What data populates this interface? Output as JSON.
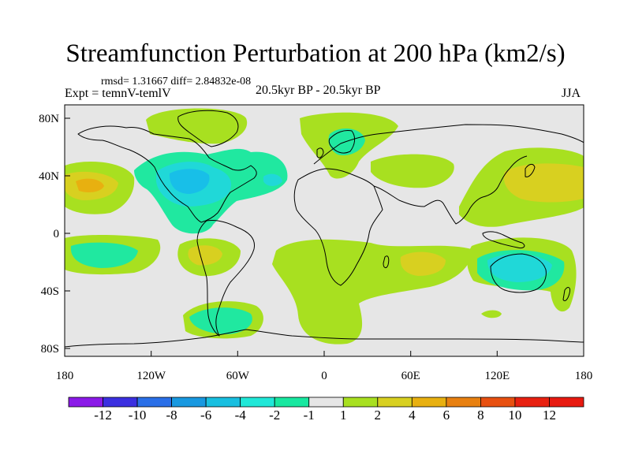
{
  "title": "Streamfunction Perturbation at 200 hPa (km2/s)",
  "stats": "rmsd= 1.31667 diff= 2.84832e-08",
  "expt": "Expt = temnV-temlV",
  "period": "20.5kyr BP - 20.5kyr BP",
  "season": "JJA",
  "x_ticks": [
    "180",
    "120W",
    "60W",
    "0",
    "60E",
    "120E",
    "180"
  ],
  "y_ticks": [
    "80N",
    "40N",
    "0",
    "40S",
    "80S"
  ],
  "colorbar": {
    "labels": [
      "-12",
      "-10",
      "-8",
      "-6",
      "-4",
      "-2",
      "-1",
      "1",
      "2",
      "4",
      "6",
      "8",
      "10",
      "12"
    ],
    "colors": [
      "#8b1ae8",
      "#3b2fe0",
      "#2a6fe8",
      "#1898e0",
      "#18bfe0",
      "#20e8d8",
      "#18e8a0",
      "#e6e6e6",
      "#a8e020",
      "#d8d020",
      "#e8b010",
      "#e88010",
      "#e85010",
      "#e82010",
      "#e81a10"
    ]
  },
  "map_colors": {
    "background": "#e6e6e6",
    "green": "#a8e020",
    "teal": "#20e8a0",
    "cyan": "#20d8d8",
    "light_blue": "#18bfe8",
    "mid_blue": "#1898e0",
    "yellow": "#d8d020",
    "orange": "#e8b010",
    "coast": "#000000"
  }
}
